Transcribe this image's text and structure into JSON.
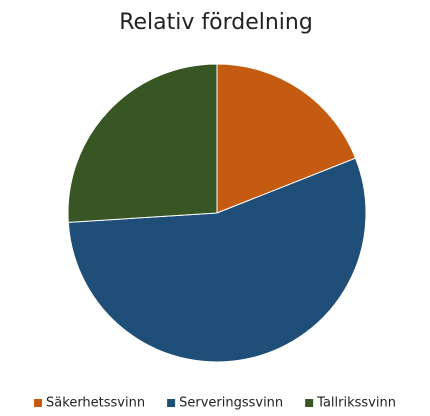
{
  "chart_data": {
    "type": "pie",
    "title": "Relativ fördelning",
    "categories": [
      "Säkerhetssvinn",
      "Serveringssvinn",
      "Tallrikssvinn"
    ],
    "values": [
      19,
      55,
      26
    ],
    "colors": [
      "#c55a11",
      "#1f4e79",
      "#375623"
    ],
    "legend": "bottom"
  }
}
